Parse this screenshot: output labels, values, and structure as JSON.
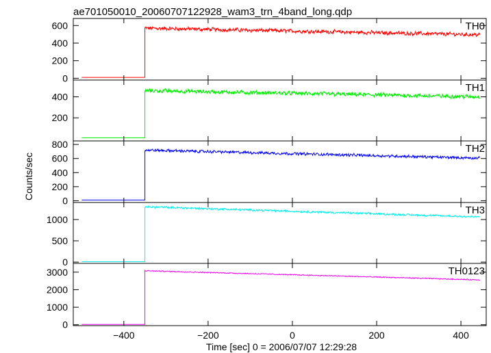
{
  "chart_data": {
    "type": "line",
    "title": "ae701050010_20060707122928_wam3_trn_4band_long.qdp",
    "xlabel": "Time [sec] 0 = 2006/07/07 12:29:28",
    "ylabel": "Counts/sec",
    "xlim": [
      -520,
      460
    ],
    "x_ticks": [
      -400,
      -200,
      0,
      200,
      400
    ],
    "grid": false,
    "data_x_range": [
      -500,
      445
    ],
    "step_x": -350,
    "panels": [
      {
        "name": "TH0",
        "color": "#ff0000",
        "ylim": [
          -20,
          680
        ],
        "y_ticks": [
          0,
          200,
          400,
          600
        ],
        "baseline": 10,
        "onset": 570,
        "end": 495,
        "noise": 28
      },
      {
        "name": "TH1",
        "color": "#00ee00",
        "ylim": [
          -20,
          560
        ],
        "y_ticks": [
          200,
          400
        ],
        "baseline": 10,
        "onset": 460,
        "end": 400,
        "noise": 25
      },
      {
        "name": "TH2",
        "color": "#0000ee",
        "ylim": [
          -25,
          850
        ],
        "y_ticks": [
          0,
          200,
          400,
          600,
          800
        ],
        "baseline": 10,
        "onset": 720,
        "end": 605,
        "noise": 25
      },
      {
        "name": "TH3",
        "color": "#00eeee",
        "ylim": [
          -30,
          1400
        ],
        "y_ticks": [
          0,
          500,
          1000
        ],
        "baseline": 10,
        "onset": 1300,
        "end": 1060,
        "noise": 30
      },
      {
        "name": "TH0123",
        "color": "#ee00ee",
        "ylim": [
          -50,
          3500
        ],
        "y_ticks": [
          0,
          1000,
          2000,
          3000
        ],
        "baseline": 20,
        "onset": 3080,
        "end": 2560,
        "noise": 35
      }
    ]
  }
}
